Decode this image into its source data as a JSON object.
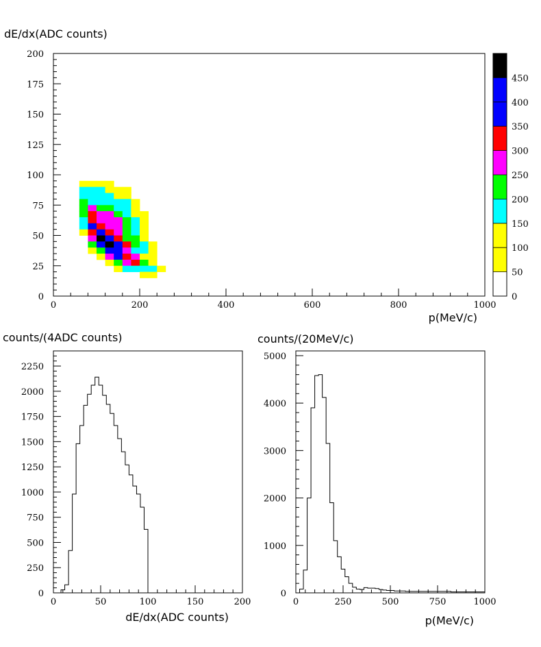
{
  "chart_data": [
    {
      "type": "heatmap",
      "xlabel": "p(MeV/c)",
      "ylabel": "dE/dx(ADC counts)",
      "xlim": [
        0,
        1000
      ],
      "ylim": [
        0,
        200
      ],
      "x_ticks": [
        0,
        200,
        400,
        600,
        800,
        1000
      ],
      "y_ticks": [
        0,
        25,
        50,
        75,
        100,
        125,
        150,
        175,
        200
      ],
      "cell_size": {
        "x": 20,
        "y": 5
      },
      "colorbar": {
        "ticks": [
          0,
          50,
          100,
          150,
          200,
          250,
          300,
          350,
          400,
          450
        ],
        "range": [
          0,
          500
        ],
        "levels": [
          {
            "from": 0,
            "to": 50,
            "color": "#ffffff"
          },
          {
            "from": 50,
            "to": 100,
            "color": "#ffff00"
          },
          {
            "from": 100,
            "to": 150,
            "color": "#ffff00"
          },
          {
            "from": 150,
            "to": 200,
            "color": "#00ffff"
          },
          {
            "from": 200,
            "to": 250,
            "color": "#00ff00"
          },
          {
            "from": 250,
            "to": 300,
            "color": "#ff00ff"
          },
          {
            "from": 300,
            "to": 350,
            "color": "#ff0000"
          },
          {
            "from": 350,
            "to": 400,
            "color": "#0000ff"
          },
          {
            "from": 400,
            "to": 450,
            "color": "#0000ff"
          },
          {
            "from": 450,
            "to": 500,
            "color": "#000000"
          }
        ]
      },
      "rows": [
        {
          "y": 90,
          "cells": [
            [
              60,
              1,
              75
            ],
            [
              80,
              1,
              75
            ],
            [
              100,
              1,
              75
            ],
            [
              120,
              1,
              75
            ]
          ]
        },
        {
          "y": 85,
          "cells": [
            [
              60,
              1,
              175
            ],
            [
              80,
              1,
              175
            ],
            [
              100,
              1,
              175
            ],
            [
              120,
              1,
              75
            ],
            [
              140,
              1,
              75
            ],
            [
              160,
              1,
              75
            ]
          ]
        },
        {
          "y": 80,
          "cells": [
            [
              60,
              1,
              175
            ],
            [
              80,
              1,
              175
            ],
            [
              100,
              1,
              175
            ],
            [
              120,
              1,
              175
            ],
            [
              140,
              1,
              75
            ],
            [
              160,
              1,
              75
            ]
          ]
        },
        {
          "y": 75,
          "cells": [
            [
              60,
              1,
              225
            ],
            [
              80,
              1,
              175
            ],
            [
              100,
              1,
              175
            ],
            [
              120,
              1,
              175
            ],
            [
              140,
              1,
              175
            ],
            [
              160,
              1,
              175
            ],
            [
              180,
              1,
              75
            ]
          ]
        },
        {
          "y": 70,
          "cells": [
            [
              60,
              1,
              225
            ],
            [
              80,
              1,
              275
            ],
            [
              100,
              1,
              225
            ],
            [
              120,
              1,
              225
            ],
            [
              140,
              1,
              175
            ],
            [
              160,
              1,
              175
            ],
            [
              180,
              1,
              75
            ]
          ]
        },
        {
          "y": 65,
          "cells": [
            [
              60,
              1,
              225
            ],
            [
              80,
              1,
              325
            ],
            [
              100,
              1,
              275
            ],
            [
              120,
              1,
              275
            ],
            [
              140,
              1,
              225
            ],
            [
              160,
              1,
              175
            ],
            [
              180,
              1,
              75
            ],
            [
              200,
              1,
              75
            ]
          ]
        },
        {
          "y": 60,
          "cells": [
            [
              60,
              1,
              175
            ],
            [
              80,
              1,
              325
            ],
            [
              100,
              1,
              275
            ],
            [
              120,
              1,
              275
            ],
            [
              140,
              1,
              275
            ],
            [
              160,
              1,
              225
            ],
            [
              180,
              1,
              175
            ],
            [
              200,
              1,
              75
            ]
          ]
        },
        {
          "y": 55,
          "cells": [
            [
              60,
              1,
              175
            ],
            [
              80,
              1,
              375
            ],
            [
              100,
              1,
              325
            ],
            [
              120,
              1,
              275
            ],
            [
              140,
              1,
              275
            ],
            [
              160,
              1,
              225
            ],
            [
              180,
              1,
              175
            ],
            [
              200,
              1,
              75
            ]
          ]
        },
        {
          "y": 50,
          "cells": [
            [
              60,
              1,
              75
            ],
            [
              80,
              1,
              325
            ],
            [
              100,
              1,
              375
            ],
            [
              120,
              1,
              325
            ],
            [
              140,
              1,
              275
            ],
            [
              160,
              1,
              225
            ],
            [
              180,
              1,
              175
            ],
            [
              200,
              1,
              75
            ]
          ]
        },
        {
          "y": 45,
          "cells": [
            [
              80,
              1,
              275
            ],
            [
              100,
              1,
              475
            ],
            [
              120,
              1,
              375
            ],
            [
              140,
              1,
              325
            ],
            [
              160,
              1,
              225
            ],
            [
              180,
              1,
              225
            ],
            [
              200,
              1,
              75
            ]
          ]
        },
        {
          "y": 40,
          "cells": [
            [
              80,
              1,
              225
            ],
            [
              100,
              1,
              375
            ],
            [
              120,
              1,
              475
            ],
            [
              140,
              1,
              375
            ],
            [
              160,
              1,
              325
            ],
            [
              180,
              1,
              225
            ],
            [
              200,
              1,
              175
            ],
            [
              220,
              1,
              75
            ]
          ]
        },
        {
          "y": 35,
          "cells": [
            [
              80,
              1,
              75
            ],
            [
              100,
              1,
              225
            ],
            [
              120,
              1,
              375
            ],
            [
              140,
              1,
              375
            ],
            [
              160,
              1,
              275
            ],
            [
              180,
              1,
              175
            ],
            [
              200,
              1,
              175
            ],
            [
              220,
              1,
              75
            ]
          ]
        },
        {
          "y": 30,
          "cells": [
            [
              100,
              1,
              75
            ],
            [
              120,
              1,
              275
            ],
            [
              140,
              1,
              375
            ],
            [
              160,
              1,
              325
            ],
            [
              180,
              1,
              275
            ],
            [
              200,
              1,
              75
            ],
            [
              220,
              1,
              75
            ]
          ]
        },
        {
          "y": 25,
          "cells": [
            [
              120,
              1,
              75
            ],
            [
              140,
              1,
              225
            ],
            [
              160,
              1,
              275
            ],
            [
              180,
              1,
              325
            ],
            [
              200,
              1,
              225
            ],
            [
              220,
              1,
              75
            ]
          ]
        },
        {
          "y": 20,
          "cells": [
            [
              140,
              1,
              75
            ],
            [
              160,
              1,
              175
            ],
            [
              180,
              1,
              175
            ],
            [
              200,
              1,
              175
            ],
            [
              220,
              1,
              175
            ],
            [
              240,
              1,
              75
            ]
          ]
        },
        {
          "y": 15,
          "cells": [
            [
              200,
              1,
              75
            ],
            [
              220,
              1,
              75
            ]
          ]
        }
      ]
    },
    {
      "type": "step",
      "xlabel": "dE/dx(ADC counts)",
      "ylabel": "counts/(4ADC counts)",
      "xlim": [
        0,
        200
      ],
      "ylim": [
        0,
        2400
      ],
      "x_ticks": [
        0,
        50,
        100,
        150,
        200
      ],
      "y_ticks": [
        0,
        250,
        500,
        750,
        1000,
        1250,
        1500,
        1750,
        2000,
        2250
      ],
      "bin_width": 4,
      "bin_start": 0,
      "values": [
        0,
        0,
        30,
        80,
        420,
        980,
        1480,
        1660,
        1860,
        1970,
        2060,
        2140,
        2060,
        1960,
        1870,
        1780,
        1660,
        1530,
        1400,
        1270,
        1170,
        1060,
        980,
        850,
        630,
        0
      ]
    },
    {
      "type": "step",
      "xlabel": "p(MeV/c)",
      "ylabel": "counts/(20MeV/c)",
      "xlim": [
        0,
        1000
      ],
      "ylim": [
        0,
        5100
      ],
      "x_ticks": [
        0,
        250,
        500,
        750,
        1000
      ],
      "y_ticks": [
        0,
        1000,
        2000,
        3000,
        4000,
        5000
      ],
      "bin_width": 20,
      "bin_start": 0,
      "values": [
        0,
        80,
        480,
        2000,
        3900,
        4580,
        4600,
        4120,
        3150,
        1900,
        1100,
        760,
        500,
        340,
        200,
        120,
        80,
        70,
        110,
        100,
        100,
        90,
        70,
        60,
        50,
        50,
        40,
        40,
        40,
        30,
        30,
        30,
        30,
        30,
        30,
        30,
        30,
        30,
        30,
        30,
        30,
        20,
        20,
        20,
        20,
        20,
        20,
        20,
        20,
        20
      ]
    }
  ]
}
